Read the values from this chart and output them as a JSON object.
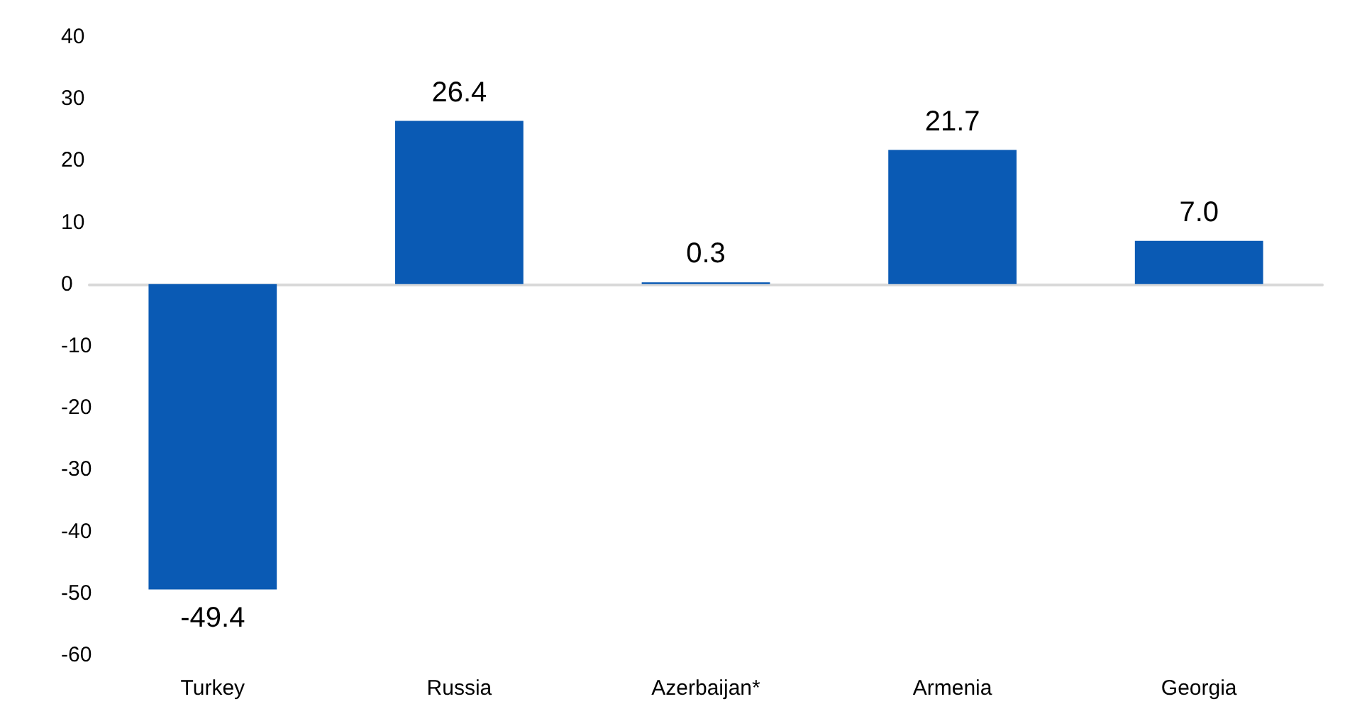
{
  "chart_data": {
    "type": "bar",
    "categories": [
      "Turkey",
      "Russia",
      "Azerbaijan*",
      "Armenia",
      "Georgia"
    ],
    "values": [
      -49.4,
      26.4,
      0.3,
      21.7,
      7.0
    ],
    "value_labels": [
      "-49.4",
      "26.4",
      "0.3",
      "21.7",
      "7.0"
    ],
    "color": "#0a5ab4",
    "ylim": [
      -60,
      40
    ],
    "yticks": [
      -60,
      -50,
      -40,
      -30,
      -20,
      -10,
      0,
      10,
      20,
      30,
      40
    ]
  }
}
